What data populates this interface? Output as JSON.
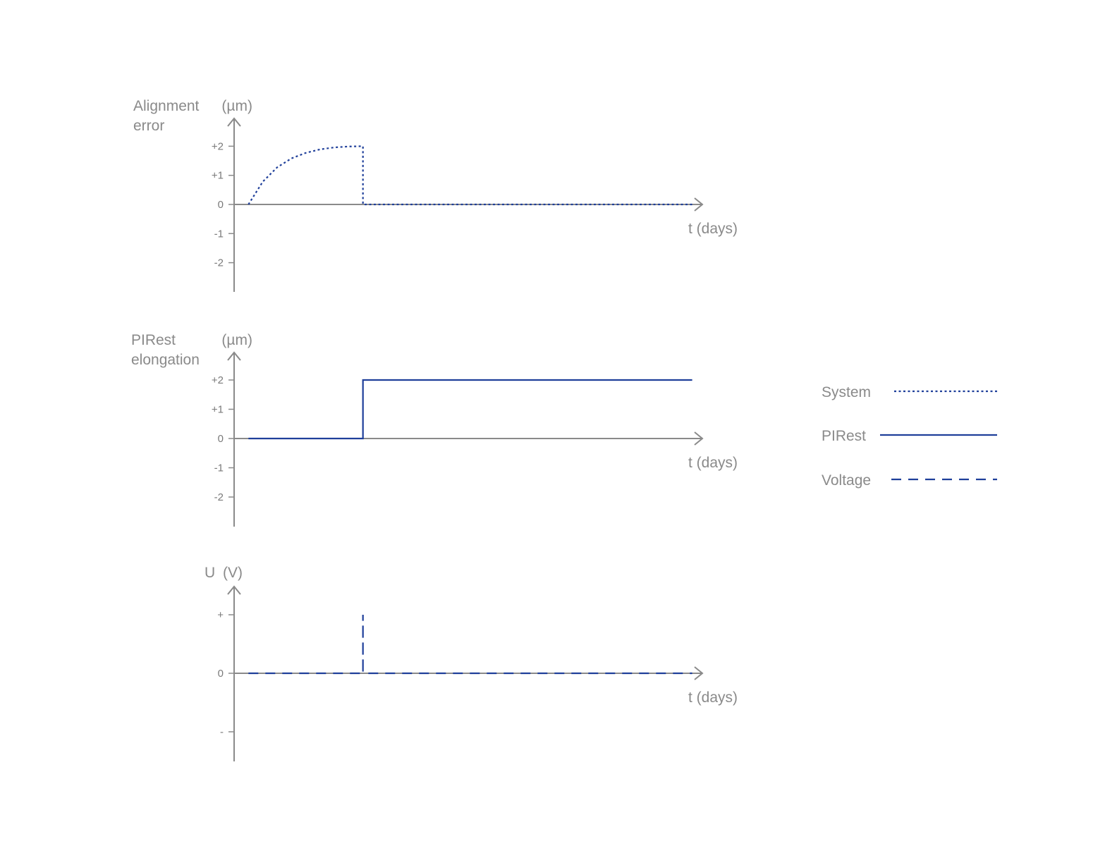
{
  "colors": {
    "axis": "#8a8a8a",
    "series": "#1f3f9a"
  },
  "legend": {
    "placement": "right",
    "items": [
      {
        "name": "System",
        "style": "dotted"
      },
      {
        "name": "PIRest",
        "style": "solid"
      },
      {
        "name": "Voltage",
        "style": "dashed"
      }
    ]
  },
  "chart_data": [
    {
      "type": "line",
      "ylabel_lines": [
        "Alignment",
        "error"
      ],
      "yunit": "(µm)",
      "xlabel": "t (days)",
      "ylim": [
        -3,
        3
      ],
      "xlim": [
        0,
        16
      ],
      "yticks": [
        2,
        1,
        0,
        -1,
        -2
      ],
      "ytick_labels": [
        "+2",
        "+1",
        "0",
        "-1",
        "-2"
      ],
      "series": [
        {
          "name": "System",
          "style": "dotted",
          "x": [
            0.5,
            1.0,
            1.5,
            2.0,
            2.5,
            3.0,
            3.5,
            4.0,
            4.5,
            4.5,
            16
          ],
          "y": [
            0,
            0.78,
            1.27,
            1.58,
            1.77,
            1.89,
            1.96,
            1.99,
            2.0,
            0,
            0
          ]
        }
      ]
    },
    {
      "type": "line",
      "ylabel_lines": [
        "PIRest",
        "elongation"
      ],
      "yunit": "(µm)",
      "xlabel": "t (days)",
      "ylim": [
        -3,
        3
      ],
      "xlim": [
        0,
        16
      ],
      "yticks": [
        2,
        1,
        0,
        -1,
        -2
      ],
      "ytick_labels": [
        "+2",
        "+1",
        "0",
        "-1",
        "-2"
      ],
      "series": [
        {
          "name": "PIRest",
          "style": "solid",
          "x": [
            0.5,
            4.5,
            4.5,
            16
          ],
          "y": [
            0,
            0,
            2,
            2
          ]
        }
      ]
    },
    {
      "type": "line",
      "ylabel_lines": [
        "U"
      ],
      "yunit": "(V)",
      "xlabel": "t (days)",
      "ylim": [
        -1.5,
        1.5
      ],
      "xlim": [
        0,
        16
      ],
      "yticks": [
        1,
        0,
        -1
      ],
      "ytick_labels": [
        "+",
        "0",
        "-"
      ],
      "series": [
        {
          "name": "Voltage",
          "style": "dashed",
          "x": [
            0.5,
            4.5,
            4.5,
            4.5,
            16
          ],
          "y": [
            0,
            0,
            1,
            0,
            0
          ]
        }
      ]
    }
  ]
}
